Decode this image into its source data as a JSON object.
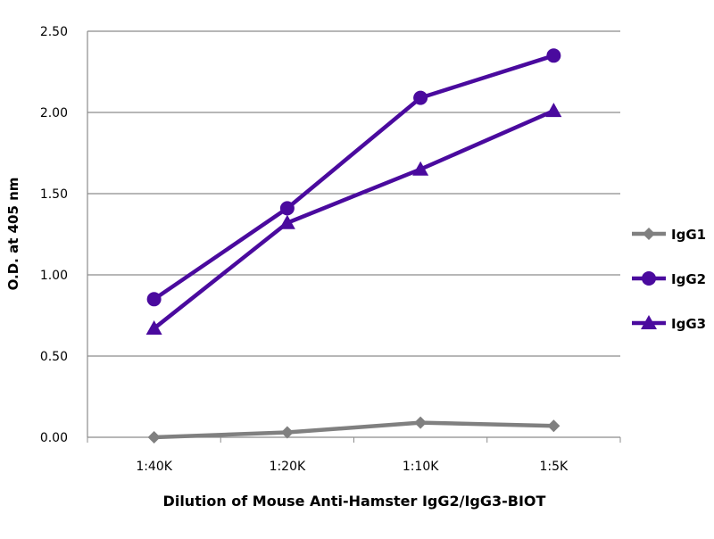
{
  "chart_data": {
    "type": "line",
    "title": "",
    "xlabel": "Dilution of Mouse Anti-Hamster IgG2/IgG3-BIOT",
    "ylabel": "O.D. at 405 nm",
    "ylim": [
      0,
      2.5
    ],
    "yticks": [
      "0.00",
      "0.50",
      "1.00",
      "1.50",
      "2.00",
      "2.50"
    ],
    "ytick_values": [
      0,
      0.5,
      1.0,
      1.5,
      2.0,
      2.5
    ],
    "categories": [
      "1:40K",
      "1:20K",
      "1:10K",
      "1:5K"
    ],
    "grid": true,
    "legend_position": "right",
    "series": [
      {
        "name": "IgG1",
        "marker": "diamond",
        "color": "#808080",
        "values": [
          0.0,
          0.03,
          0.09,
          0.07
        ]
      },
      {
        "name": "IgG2",
        "marker": "circle",
        "color": "#4a0a9e",
        "values": [
          0.85,
          1.41,
          2.09,
          2.35
        ]
      },
      {
        "name": "IgG3",
        "marker": "triangle",
        "color": "#4a0a9e",
        "values": [
          0.67,
          1.32,
          1.65,
          2.01
        ]
      }
    ]
  }
}
